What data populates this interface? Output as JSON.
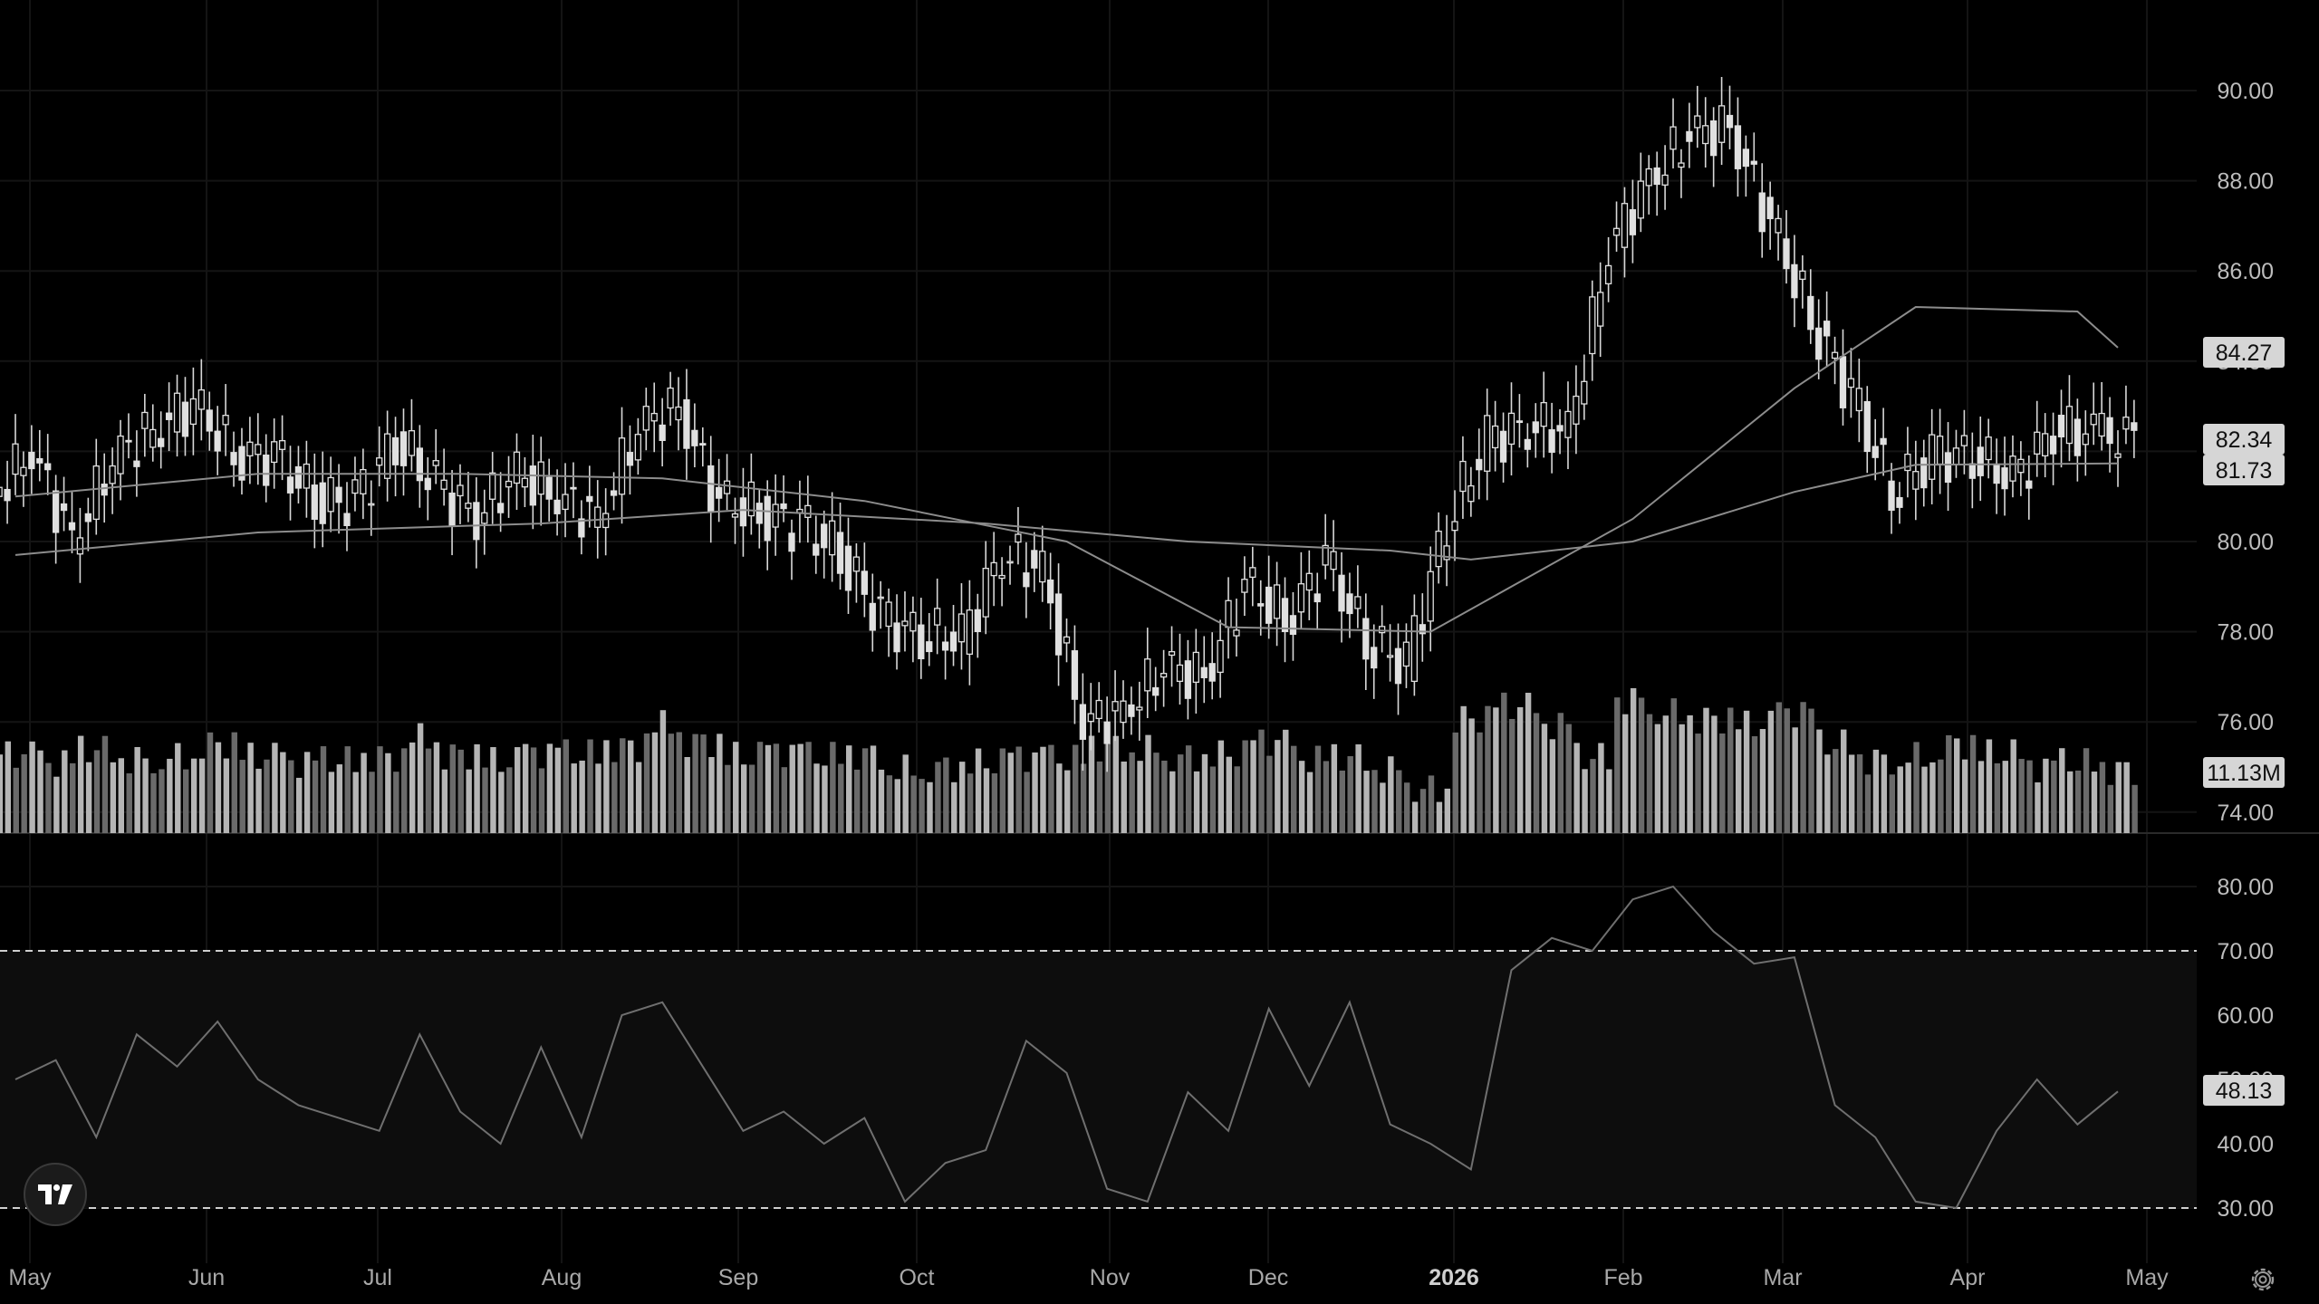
{
  "chart_data": [
    {
      "type": "candlestick",
      "panel": "price",
      "x_axis_labels": [
        "May",
        "Jun",
        "Jul",
        "Aug",
        "Sep",
        "Oct",
        "Nov",
        "Dec",
        "2026",
        "Feb",
        "Mar",
        "Apr",
        "May"
      ],
      "y_ticks": [
        "90.00",
        "88.00",
        "86.00",
        "84.00",
        "82.00",
        "80.00",
        "78.00",
        "76.00",
        "74.00"
      ],
      "ylim": [
        73.6,
        91.8
      ],
      "weekly_close_approx": [
        [
          "2025-04-28",
          81.0
        ],
        [
          "2025-05-05",
          82.0
        ],
        [
          "2025-05-12",
          80.0
        ],
        [
          "2025-05-19",
          81.8
        ],
        [
          "2025-05-26",
          82.5
        ],
        [
          "2025-06-02",
          83.0
        ],
        [
          "2025-06-09",
          82.0
        ],
        [
          "2025-06-16",
          81.8
        ],
        [
          "2025-06-23",
          81.0
        ],
        [
          "2025-06-30",
          80.8
        ],
        [
          "2025-07-07",
          82.3
        ],
        [
          "2025-07-14",
          81.2
        ],
        [
          "2025-07-21",
          80.6
        ],
        [
          "2025-07-28",
          81.5
        ],
        [
          "2025-08-04",
          81.0
        ],
        [
          "2025-08-11",
          80.5
        ],
        [
          "2025-08-18",
          82.5
        ],
        [
          "2025-08-25",
          83.0
        ],
        [
          "2025-09-01",
          80.8
        ],
        [
          "2025-09-08",
          80.7
        ],
        [
          "2025-09-15",
          80.3
        ],
        [
          "2025-09-22",
          79.8
        ],
        [
          "2025-09-29",
          78.2
        ],
        [
          "2025-10-06",
          78.0
        ],
        [
          "2025-10-13",
          77.8
        ],
        [
          "2025-10-20",
          79.8
        ],
        [
          "2025-10-27",
          79.3
        ],
        [
          "2025-11-03",
          76.0
        ],
        [
          "2025-11-10",
          76.2
        ],
        [
          "2025-11-17",
          77.2
        ],
        [
          "2025-11-24",
          77.0
        ],
        [
          "2025-12-01",
          79.0
        ],
        [
          "2025-12-08",
          78.3
        ],
        [
          "2025-12-15",
          79.5
        ],
        [
          "2025-12-22",
          77.9
        ],
        [
          "2025-12-29",
          77.2
        ],
        [
          "2026-01-05",
          80.5
        ],
        [
          "2026-01-12",
          82.2
        ],
        [
          "2026-01-19",
          82.6
        ],
        [
          "2026-01-26",
          82.4
        ],
        [
          "2026-02-02",
          86.5
        ],
        [
          "2026-02-09",
          88.0
        ],
        [
          "2026-02-16",
          89.0
        ],
        [
          "2026-02-23",
          89.2
        ],
        [
          "2026-03-02",
          87.0
        ],
        [
          "2026-03-09",
          85.0
        ],
        [
          "2026-03-16",
          83.2
        ],
        [
          "2026-03-23",
          81.2
        ],
        [
          "2026-03-30",
          81.8
        ],
        [
          "2026-04-06",
          82.0
        ],
        [
          "2026-04-13",
          81.3
        ],
        [
          "2026-04-20",
          82.5
        ],
        [
          "2026-04-27",
          82.34
        ]
      ],
      "moving_averages": [
        {
          "last_value": "84.27",
          "points": [
            [
              "2025-04-28",
              81.0
            ],
            [
              "2025-06-09",
              81.5
            ],
            [
              "2025-07-14",
              81.5
            ],
            [
              "2025-08-18",
              81.4
            ],
            [
              "2025-09-22",
              80.9
            ],
            [
              "2025-10-27",
              80.0
            ],
            [
              "2025-11-24",
              78.1
            ],
            [
              "2025-12-29",
              78.0
            ],
            [
              "2026-01-12",
              79.0
            ],
            [
              "2026-02-02",
              80.5
            ],
            [
              "2026-03-02",
              83.4
            ],
            [
              "2026-03-23",
              85.2
            ],
            [
              "2026-04-20",
              85.1
            ],
            [
              "2026-04-27",
              84.3
            ]
          ]
        },
        {
          "last_value": "81.73",
          "points": [
            [
              "2025-04-28",
              79.7
            ],
            [
              "2025-06-09",
              80.2
            ],
            [
              "2025-07-28",
              80.4
            ],
            [
              "2025-09-01",
              80.7
            ],
            [
              "2025-10-13",
              80.4
            ],
            [
              "2025-11-17",
              80.0
            ],
            [
              "2025-12-22",
              79.8
            ],
            [
              "2026-01-05",
              79.6
            ],
            [
              "2026-02-02",
              80.0
            ],
            [
              "2026-03-02",
              81.1
            ],
            [
              "2026-03-23",
              81.7
            ],
            [
              "2026-04-27",
              81.73
            ]
          ]
        }
      ],
      "last_price": "82.34"
    },
    {
      "type": "bar",
      "panel": "volume",
      "last_value": "11.13M",
      "relative_volume_weekly_approx": [
        0.62,
        0.55,
        0.66,
        0.58,
        0.6,
        0.7,
        0.6,
        0.55,
        0.57,
        0.6,
        0.75,
        0.62,
        0.56,
        0.63,
        0.62,
        0.68,
        0.85,
        0.72,
        0.6,
        0.64,
        0.6,
        0.62,
        0.5,
        0.52,
        0.55,
        0.6,
        0.58,
        0.68,
        0.66,
        0.6,
        0.62,
        0.72,
        0.58,
        0.6,
        0.5,
        0.35,
        0.9,
        1.0,
        0.85,
        0.6,
        1.05,
        0.95,
        0.9,
        0.85,
        0.95,
        0.7,
        0.58,
        0.6,
        0.7,
        0.62,
        0.52,
        0.55,
        0.5
      ]
    },
    {
      "type": "line",
      "panel": "oscillator",
      "y_ticks": [
        "80.00",
        "70.00",
        "60.00",
        "50.00",
        "40.00",
        "30.00"
      ],
      "ylim": [
        27,
        84
      ],
      "band_levels": [
        70,
        30
      ],
      "last_value": "48.13",
      "points": [
        [
          "2025-04-28",
          50
        ],
        [
          "2025-05-05",
          53
        ],
        [
          "2025-05-12",
          41
        ],
        [
          "2025-05-19",
          57
        ],
        [
          "2025-05-26",
          52
        ],
        [
          "2025-06-02",
          59
        ],
        [
          "2025-06-09",
          50
        ],
        [
          "2025-06-16",
          46
        ],
        [
          "2025-06-23",
          44
        ],
        [
          "2025-06-30",
          42
        ],
        [
          "2025-07-07",
          57
        ],
        [
          "2025-07-14",
          45
        ],
        [
          "2025-07-21",
          40
        ],
        [
          "2025-07-28",
          55
        ],
        [
          "2025-08-04",
          41
        ],
        [
          "2025-08-11",
          60
        ],
        [
          "2025-08-18",
          62
        ],
        [
          "2025-08-25",
          52
        ],
        [
          "2025-09-01",
          42
        ],
        [
          "2025-09-08",
          45
        ],
        [
          "2025-09-15",
          40
        ],
        [
          "2025-09-22",
          44
        ],
        [
          "2025-09-29",
          31
        ],
        [
          "2025-10-06",
          37
        ],
        [
          "2025-10-13",
          39
        ],
        [
          "2025-10-20",
          56
        ],
        [
          "2025-10-27",
          51
        ],
        [
          "2025-11-03",
          33
        ],
        [
          "2025-11-10",
          31
        ],
        [
          "2025-11-17",
          48
        ],
        [
          "2025-11-24",
          42
        ],
        [
          "2025-12-01",
          61
        ],
        [
          "2025-12-08",
          49
        ],
        [
          "2025-12-15",
          62
        ],
        [
          "2025-12-22",
          43
        ],
        [
          "2025-12-29",
          40
        ],
        [
          "2026-01-05",
          36
        ],
        [
          "2026-01-12",
          67
        ],
        [
          "2026-01-19",
          72
        ],
        [
          "2026-01-26",
          70
        ],
        [
          "2026-02-02",
          78
        ],
        [
          "2026-02-09",
          80
        ],
        [
          "2026-02-16",
          73
        ],
        [
          "2026-02-23",
          68
        ],
        [
          "2026-03-02",
          69
        ],
        [
          "2026-03-09",
          46
        ],
        [
          "2026-03-16",
          41
        ],
        [
          "2026-03-23",
          31
        ],
        [
          "2026-03-30",
          30
        ],
        [
          "2026-04-06",
          42
        ],
        [
          "2026-04-13",
          50
        ],
        [
          "2026-04-20",
          43
        ],
        [
          "2026-04-27",
          48.13
        ]
      ]
    }
  ],
  "ui": {
    "logo_text": "TV",
    "icons": {
      "logo": "tradingview-logo-icon",
      "settings": "gear-icon"
    },
    "colors": {
      "background": "#000000",
      "candle": "#e0e0e0",
      "label_bg": "#d6d6d6"
    }
  }
}
